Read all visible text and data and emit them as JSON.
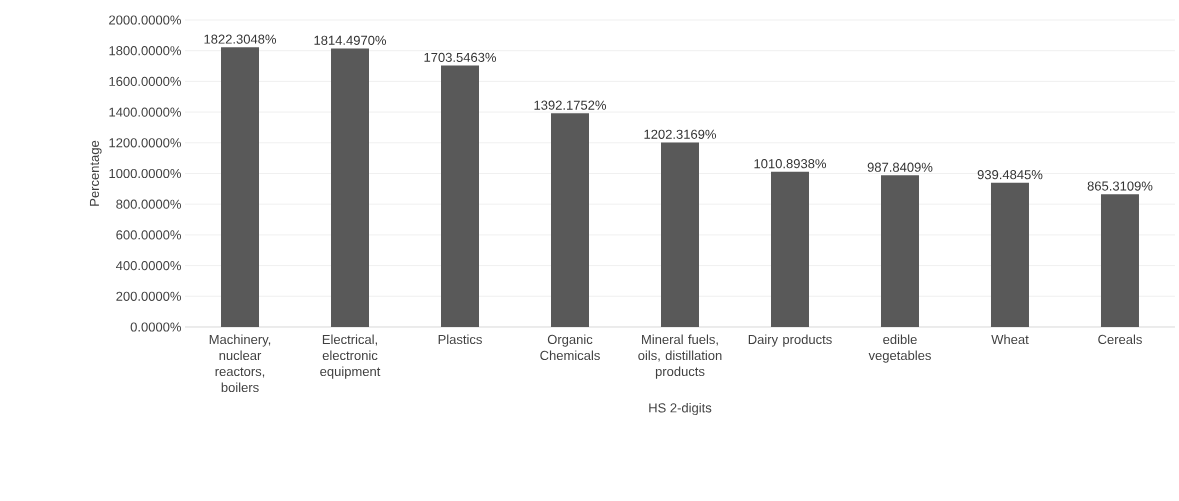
{
  "chart_data": {
    "type": "bar",
    "categories": [
      "Machinery, nuclear reactors, boilers",
      "Electrical, electronic equipment",
      "Plastics",
      "Organic Chemicals",
      "Mineral fuels, oils, distillation products",
      "Dairy products",
      "edible vegetables",
      "Wheat",
      "Cereals"
    ],
    "values": [
      1822.3048,
      1814.497,
      1703.5463,
      1392.1752,
      1202.3169,
      1010.8938,
      987.8409,
      939.4845,
      865.3109
    ],
    "value_labels": [
      "1822.3048%",
      "1814.4970%",
      "1703.5463%",
      "1392.1752%",
      "1202.3169%",
      "1010.8938%",
      "987.8409%",
      "939.4845%",
      "865.3109%"
    ],
    "color": "#595959",
    "xlabel": "HS 2-digits",
    "ylabel": "Percentage",
    "ylim": [
      0,
      2000
    ],
    "yticks": [
      {
        "value": 0,
        "label": "0.0000%"
      },
      {
        "value": 200,
        "label": "200.0000%"
      },
      {
        "value": 400,
        "label": "400.0000%"
      },
      {
        "value": 600,
        "label": "600.0000%"
      },
      {
        "value": 800,
        "label": "800.0000%"
      },
      {
        "value": 1000,
        "label": "1000.0000%"
      },
      {
        "value": 1200,
        "label": "1200.0000%"
      },
      {
        "value": 1400,
        "label": "1400.0000%"
      },
      {
        "value": 1600,
        "label": "1600.0000%"
      },
      {
        "value": 1800,
        "label": "1800.0000%"
      },
      {
        "value": 2000,
        "label": "2000.0000%"
      }
    ],
    "grid": "y"
  }
}
